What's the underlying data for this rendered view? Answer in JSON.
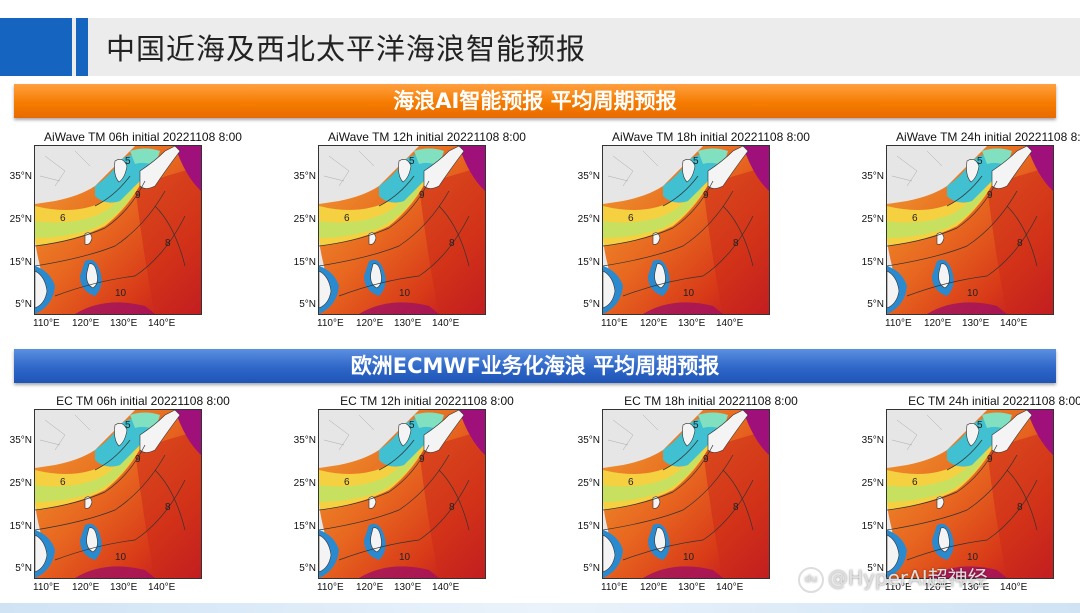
{
  "title": "中国近海及西北太平洋海浪智能预报",
  "banner_ai": "海浪AI智能预报  平均周期预报",
  "banner_ec": "欧洲ECMWF业务化海浪  平均周期预报",
  "ai_panels": [
    {
      "title": "AiWave TM 06h initial 20221108 8:00"
    },
    {
      "title": "AiWave TM 12h initial 20221108 8:00"
    },
    {
      "title": "AiWave TM 18h initial 20221108 8:00"
    },
    {
      "title": "AiWave TM 24h initial 20221108 8:00"
    }
  ],
  "ec_panels": [
    {
      "title": "EC TM 06h initial 20221108 8:00"
    },
    {
      "title": "EC TM 12h initial 20221108 8:00"
    },
    {
      "title": "EC TM 18h initial 20221108 8:00"
    },
    {
      "title": "EC TM 24h initial 20221108 8:00"
    }
  ],
  "axes": {
    "lat_labels": [
      "35°N",
      "25°N",
      "15°N",
      "5°N"
    ],
    "lon_labels": [
      "110°E",
      "120°E",
      "130°E",
      "140°E"
    ]
  },
  "watermark": "@HyperAI超神经",
  "colors": {
    "title_bar_accent": "#1565c0",
    "banner_orange": "#f57c00",
    "banner_blue": "#2f67c9"
  }
}
